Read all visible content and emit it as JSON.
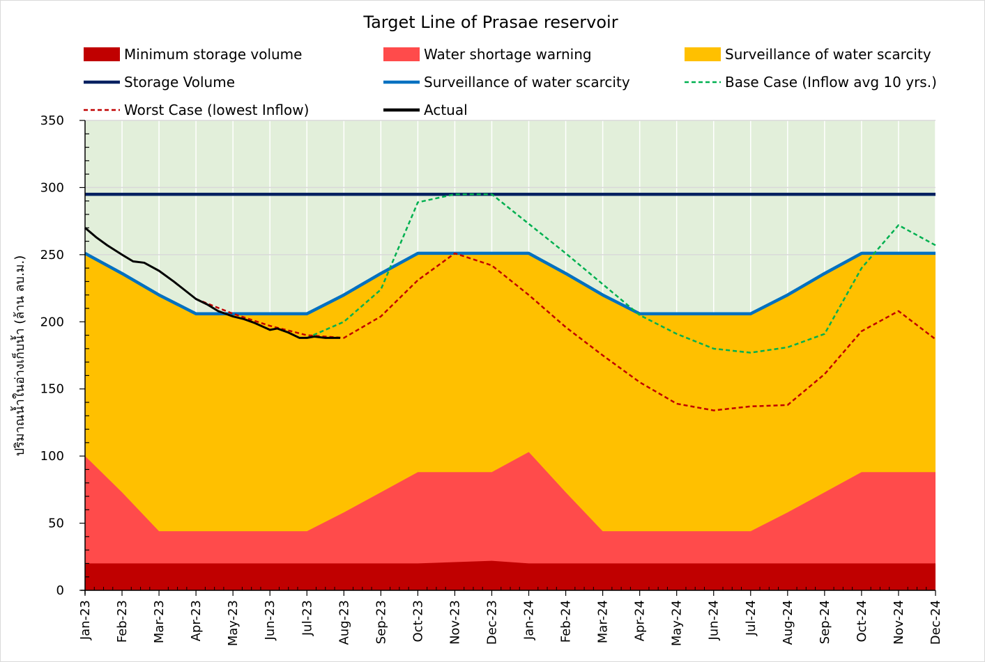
{
  "chart_data": {
    "type": "area",
    "title": "Target Line of Prasae reservoir",
    "ylabel": "ปริมาณน้ำในอ่างเก็บน้ำ (ล้าน ลบ.ม.)",
    "xlabel": "",
    "ylim": [
      0,
      350
    ],
    "yticks": [
      0,
      50,
      100,
      150,
      200,
      250,
      300,
      350
    ],
    "categories": [
      "Jan-23",
      "Feb-23",
      "Mar-23",
      "Apr-23",
      "May-23",
      "Jun-23",
      "Jul-23",
      "Aug-23",
      "Sep-23",
      "Oct-23",
      "Nov-23",
      "Dec-23",
      "Jan-24",
      "Feb-24",
      "Mar-24",
      "Apr-24",
      "May-24",
      "Jun-24",
      "Jul-24",
      "Aug-24",
      "Sep-24",
      "Oct-24",
      "Nov-24",
      "Dec-24"
    ],
    "grid": true,
    "legend_position": "top",
    "series": [
      {
        "name": "Minimum storage volume",
        "kind": "area",
        "color": "#C00000",
        "values": [
          20,
          20,
          20,
          20,
          20,
          20,
          20,
          20,
          20,
          20,
          21,
          22,
          20,
          20,
          20,
          20,
          20,
          20,
          20,
          20,
          20,
          20,
          20,
          20
        ]
      },
      {
        "name": "Water shortage warning",
        "kind": "area",
        "color": "#FF4B4B",
        "values": [
          100,
          73,
          44,
          44,
          44,
          44,
          44,
          58,
          73,
          88,
          88,
          88,
          103,
          73,
          44,
          44,
          44,
          44,
          44,
          58,
          73,
          88,
          88,
          88
        ]
      },
      {
        "name": "Surveillance of water scarcity",
        "kind": "area",
        "color": "#FFC000",
        "values": [
          251,
          236,
          220,
          206,
          206,
          206,
          206,
          220,
          236,
          251,
          251,
          251,
          251,
          236,
          220,
          206,
          206,
          206,
          206,
          220,
          236,
          251,
          251,
          251
        ]
      },
      {
        "name": "Storage Volume",
        "kind": "line",
        "color": "#002060",
        "values": [
          295,
          295,
          295,
          295,
          295,
          295,
          295,
          295,
          295,
          295,
          295,
          295,
          295,
          295,
          295,
          295,
          295,
          295,
          295,
          295,
          295,
          295,
          295,
          295
        ]
      },
      {
        "name": "Surveillance of water scarcity",
        "kind": "line",
        "color": "#0070C0",
        "values": [
          251,
          236,
          220,
          206,
          206,
          206,
          206,
          220,
          236,
          251,
          251,
          251,
          251,
          236,
          220,
          206,
          206,
          206,
          206,
          220,
          236,
          251,
          251,
          251
        ]
      },
      {
        "name": "Base Case (Inflow avg 10 yrs.)",
        "kind": "dashed",
        "color": "#00B050",
        "values": [
          null,
          null,
          null,
          null,
          null,
          null,
          188,
          200,
          224,
          289,
          295,
          295,
          273,
          251,
          228,
          205,
          191,
          180,
          177,
          181,
          191,
          240,
          272,
          257
        ]
      },
      {
        "name": "Worst Case (lowest Inflow)",
        "kind": "dashed",
        "color": "#C00000",
        "values": [
          null,
          null,
          null,
          217,
          206,
          197,
          190,
          188,
          204,
          231,
          251,
          242,
          220,
          196,
          175,
          155,
          139,
          134,
          137,
          138,
          161,
          193,
          208,
          187
        ]
      },
      {
        "name": "Actual",
        "kind": "line",
        "color": "#000000",
        "x": [
          0,
          0.3,
          0.6,
          1,
          1.3,
          1.6,
          2,
          2.4,
          3,
          3.3,
          3.6,
          4,
          4.3,
          4.6,
          5,
          5.2,
          5.5,
          5.8,
          6,
          6.2,
          6.5,
          6.9
        ],
        "values": [
          270,
          263,
          257,
          250,
          245,
          244,
          238,
          230,
          217,
          213,
          208,
          204,
          202,
          199,
          194,
          195,
          192,
          188,
          188,
          189,
          188,
          188
        ]
      }
    ]
  }
}
